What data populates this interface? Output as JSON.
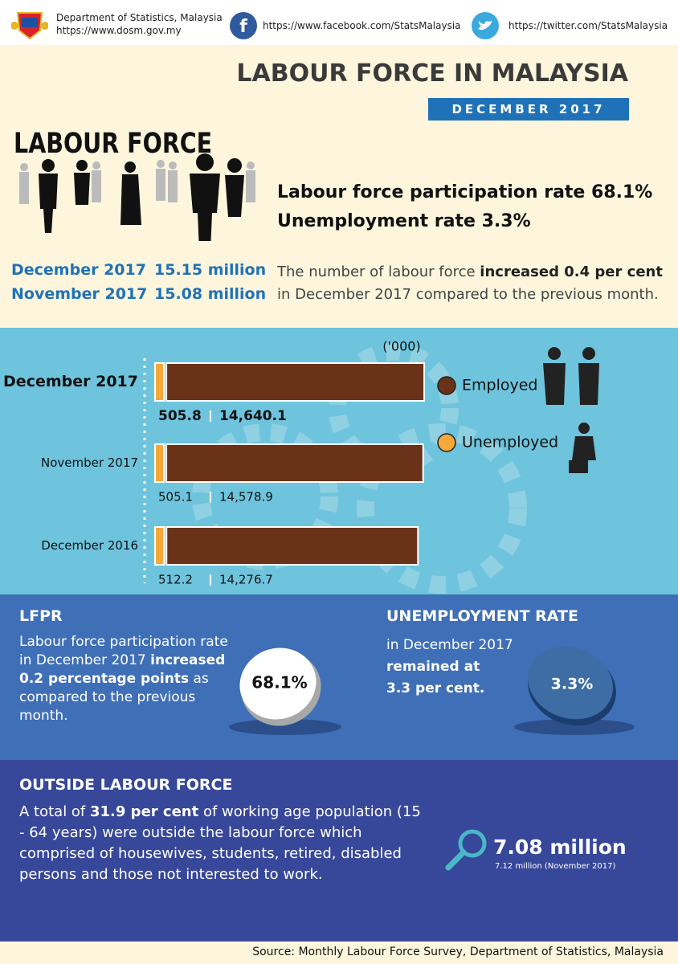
{
  "header": {
    "org": "Department of Statistics, Malaysia",
    "url": "https://www.dosm.gov.my",
    "facebook": "https://www.facebook.com/StatsMalaysia",
    "twitter": "https://twitter.com/StatsMalaysia"
  },
  "title": "LABOUR FORCE IN MALAYSIA",
  "period": "DECEMBER 2017",
  "hero": {
    "wordart": "LABOUR FORCE",
    "rates": [
      "Labour force participation rate 68.1%",
      "Unemployment rate 3.3%"
    ],
    "rows": [
      {
        "month": "December 2017",
        "value": "15.15 million"
      },
      {
        "month": "November 2017",
        "value": "15.08 million"
      }
    ],
    "note": [
      "The number of labour force ",
      "increased 0.4 per cent",
      " in December 2017 compared to the previous month."
    ]
  },
  "chart_data": {
    "type": "bar",
    "orientation": "horizontal",
    "stacked": true,
    "unit": "('000)",
    "categories": [
      "December 2017",
      "November 2017",
      "December 2016"
    ],
    "series": [
      {
        "name": "Unemployed",
        "color": "#f6a83a",
        "values": [
          505.8,
          505.1,
          512.2
        ]
      },
      {
        "name": "Employed",
        "color": "#6a3219",
        "values": [
          14640.1,
          14578.9,
          14276.7
        ],
        "value_labels": [
          "14,640.1",
          "14,578.9",
          "14,276.7"
        ]
      }
    ]
  },
  "lfpr": {
    "title": "LFPR",
    "text": [
      "Labour force participation rate in December 2017 ",
      "increased 0.2 percentage points",
      " as compared to the previous month."
    ],
    "value": "68.1%"
  },
  "unemployment": {
    "title": "UNEMPLOYMENT RATE",
    "lines": [
      "in December 2017",
      "remained at",
      "3.3 per cent."
    ],
    "value": "3.3%"
  },
  "outside": {
    "title": "OUTSIDE LABOUR FORCE",
    "text": [
      "A total of ",
      "31.9 per cent",
      " of working age population (15 - 64 years) were outside the labour force which comprised of housewives, students, retired, disabled persons and those not interested to work."
    ],
    "value": "7.08 million",
    "previous": "7.12 million (November 2017)"
  },
  "source": "Source: Monthly Labour Force Survey, Department of Statistics, Malaysia"
}
